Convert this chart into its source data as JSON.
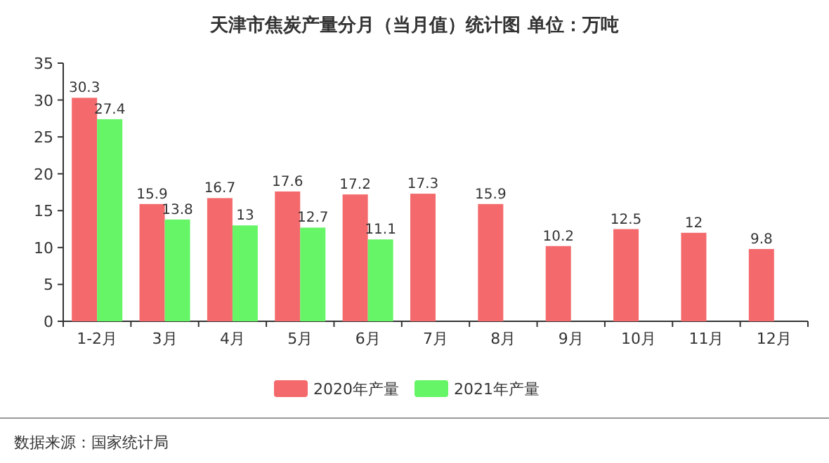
{
  "chart_data": {
    "type": "bar",
    "title": "天津市焦炭产量分月（当月值）统计图 单位：万吨",
    "categories": [
      "1-2月",
      "3月",
      "4月",
      "5月",
      "6月",
      "7月",
      "8月",
      "9月",
      "10月",
      "11月",
      "12月"
    ],
    "series": [
      {
        "name": "2020年产量",
        "color": "#f46a6c",
        "values": [
          30.3,
          15.9,
          16.7,
          17.6,
          17.2,
          17.3,
          15.9,
          10.2,
          12.5,
          12,
          9.8
        ]
      },
      {
        "name": "2021年产量",
        "color": "#66f566",
        "values": [
          27.4,
          13.8,
          13,
          12.7,
          11.1,
          null,
          null,
          null,
          null,
          null,
          null
        ]
      }
    ],
    "ylim": [
      0,
      35
    ],
    "yticks": [
      0,
      5,
      10,
      15,
      20,
      25,
      30,
      35
    ],
    "data_labels": true,
    "legend": "bottom",
    "grid": false,
    "annotations": [
      "数据来源：国家统计局"
    ]
  }
}
